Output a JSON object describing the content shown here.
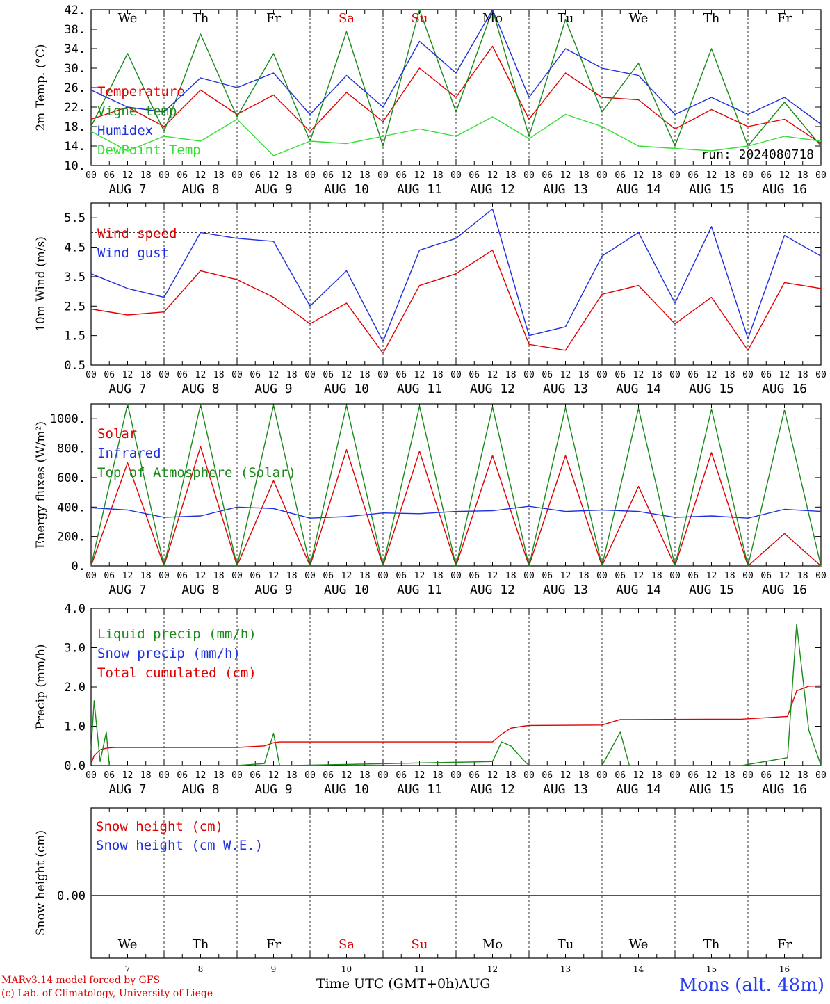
{
  "chart_data": [
    {
      "type": "line",
      "ylabel": "2m Temp. (°C)",
      "ylim": [
        10,
        42
      ],
      "yticks": [
        "42.",
        "38.",
        "34.",
        "30.",
        "26.",
        "22.",
        "18.",
        "14.",
        "10."
      ],
      "ytick_values": [
        42,
        38,
        34,
        30,
        26,
        22,
        18,
        14,
        10
      ],
      "run_label": "run: 2024080718",
      "legend": [
        {
          "name": "Temperature",
          "color": "#e00000"
        },
        {
          "name": "Vigne temp",
          "color": "#1a8a1a"
        },
        {
          "name": "Humidex",
          "color": "#1e2fe0"
        },
        {
          "name": "DewPoint Temp",
          "color": "#33e033"
        }
      ],
      "x_hours": [
        0,
        12,
        24,
        36,
        48,
        60,
        72,
        84,
        96,
        108,
        120,
        132,
        144,
        156,
        168,
        180,
        192,
        204,
        216,
        228,
        240
      ],
      "series": [
        {
          "name": "Temperature",
          "color": "#e00000",
          "values": [
            19.5,
            22,
            18,
            25.5,
            20.5,
            24.5,
            17,
            25,
            19,
            30,
            24,
            34.5,
            19.5,
            29,
            24,
            23.5,
            17.5,
            21.5,
            18,
            19.5,
            14.5
          ]
        },
        {
          "name": "Vigne temp",
          "color": "#1a8a1a",
          "values": [
            18,
            33,
            17,
            37,
            20,
            33,
            15,
            37.5,
            14,
            42,
            21,
            42,
            16,
            40,
            21,
            31,
            14,
            34,
            14,
            23,
            14
          ]
        },
        {
          "name": "Humidex",
          "color": "#1e2fe0",
          "values": [
            25.5,
            22,
            21,
            28,
            26,
            29,
            20.5,
            28.5,
            22,
            35.5,
            29,
            42,
            24,
            34,
            30,
            28.5,
            20.5,
            24,
            20.5,
            24,
            18.5
          ]
        },
        {
          "name": "DewPoint Temp",
          "color": "#33e033",
          "values": [
            17,
            13,
            16,
            15,
            19.5,
            12,
            15,
            14.5,
            16,
            17.5,
            16,
            20,
            15.5,
            20.5,
            18,
            14,
            13.5,
            13,
            14,
            16,
            15
          ]
        }
      ]
    },
    {
      "type": "line",
      "ylabel": "10m Wind (m/s)",
      "ylim": [
        0.5,
        6
      ],
      "yticks": [
        "5.5",
        "4.5",
        "3.5",
        "2.5",
        "1.5",
        "0.5"
      ],
      "ytick_values": [
        5.5,
        4.5,
        3.5,
        2.5,
        1.5,
        0.5
      ],
      "reference_line": 5,
      "legend": [
        {
          "name": "Wind speed",
          "color": "#e00000"
        },
        {
          "name": "Wind gust",
          "color": "#1e2fe0"
        }
      ],
      "x_hours": [
        0,
        12,
        24,
        36,
        48,
        60,
        72,
        84,
        96,
        108,
        120,
        132,
        144,
        156,
        168,
        180,
        192,
        204,
        216,
        228,
        240
      ],
      "series": [
        {
          "name": "Wind speed",
          "color": "#e00000",
          "values": [
            2.4,
            2.2,
            2.3,
            3.7,
            3.4,
            2.8,
            1.9,
            2.6,
            0.9,
            3.2,
            3.6,
            4.4,
            1.2,
            1.0,
            2.9,
            3.2,
            1.9,
            2.8,
            1.0,
            3.3,
            3.1
          ]
        },
        {
          "name": "Wind gust",
          "color": "#1e2fe0",
          "values": [
            3.6,
            3.1,
            2.8,
            5.0,
            4.8,
            4.7,
            2.5,
            3.7,
            1.3,
            4.4,
            4.8,
            5.8,
            1.5,
            1.8,
            4.2,
            5.0,
            2.6,
            5.2,
            1.4,
            4.9,
            4.2
          ]
        }
      ]
    },
    {
      "type": "line",
      "ylabel": "Energy fluxes (W/m²)",
      "ylim": [
        0,
        1100
      ],
      "yticks": [
        "1000.",
        "800.",
        "600.",
        "400.",
        "200.",
        "0."
      ],
      "ytick_values": [
        1000,
        800,
        600,
        400,
        200,
        0
      ],
      "legend": [
        {
          "name": "Solar",
          "color": "#e00000"
        },
        {
          "name": "Infrared",
          "color": "#1e2fe0"
        },
        {
          "name": "Top of Atmosphere (Solar)",
          "color": "#1a8a1a"
        }
      ],
      "x_hours": [
        0,
        12,
        24,
        36,
        48,
        60,
        72,
        84,
        96,
        108,
        120,
        132,
        144,
        156,
        168,
        180,
        192,
        204,
        216,
        228,
        240
      ],
      "series": [
        {
          "name": "Solar",
          "color": "#e00000",
          "values": [
            0,
            700,
            0,
            810,
            0,
            580,
            0,
            790,
            0,
            780,
            0,
            750,
            0,
            750,
            0,
            540,
            0,
            770,
            0,
            220,
            0
          ]
        },
        {
          "name": "Infrared",
          "color": "#1e2fe0",
          "values": [
            395,
            380,
            330,
            340,
            400,
            390,
            325,
            335,
            360,
            355,
            370,
            375,
            405,
            370,
            380,
            370,
            330,
            340,
            325,
            385,
            370
          ]
        },
        {
          "name": "Top of Atmosphere (Solar)",
          "color": "#1a8a1a",
          "values": [
            0,
            1100,
            0,
            1095,
            0,
            1090,
            0,
            1090,
            0,
            1085,
            0,
            1080,
            0,
            1075,
            0,
            1070,
            0,
            1065,
            0,
            1060,
            0
          ]
        }
      ]
    },
    {
      "type": "line",
      "ylabel": "Precip (mm/h)",
      "ylim": [
        0,
        4
      ],
      "yticks": [
        "4.0",
        "3.0",
        "2.0",
        "1.0",
        "0.0"
      ],
      "ytick_values": [
        4,
        3,
        2,
        1,
        0
      ],
      "legend": [
        {
          "name": "Liquid precip (mm/h)",
          "color": "#1a8a1a"
        },
        {
          "name": "Snow precip (mm/h)",
          "color": "#1e2fe0"
        },
        {
          "name": "Total cumulated (cm)",
          "color": "#e00000"
        }
      ],
      "x_hours": [
        0,
        1,
        3,
        5,
        6,
        8,
        12,
        48,
        57,
        60,
        62,
        66,
        132,
        135,
        138,
        142,
        144,
        168,
        174,
        177,
        214,
        229,
        232,
        236,
        240
      ],
      "series": [
        {
          "name": "Total cumulated (cm)",
          "color": "#e00000",
          "values": [
            0.05,
            0.25,
            0.4,
            0.44,
            0.45,
            0.46,
            0.46,
            0.46,
            0.5,
            0.58,
            0.6,
            0.6,
            0.6,
            0.8,
            0.95,
            1.0,
            1.02,
            1.03,
            1.17,
            1.17,
            1.18,
            1.25,
            1.9,
            2.02,
            2.03
          ]
        },
        {
          "name": "Liquid precip (mm/h)",
          "color": "#1a8a1a",
          "values": [
            0.4,
            1.65,
            0.1,
            0.85,
            0,
            0,
            0,
            0,
            0.05,
            0.82,
            0,
            0,
            0.1,
            0.6,
            0.5,
            0.15,
            0,
            0,
            0.85,
            0,
            0,
            0.2,
            3.6,
            0.9,
            0
          ]
        }
      ]
    },
    {
      "type": "line",
      "ylabel": "Snow height (cm)",
      "yticks": [
        "0.00"
      ],
      "legend": [
        {
          "name": "Snow height (cm)",
          "color": "#e00000"
        },
        {
          "name": "Snow height (cm W.E.)",
          "color": "#1e2fe0"
        }
      ],
      "x_hours": [
        0,
        240
      ],
      "series": [
        {
          "name": "Snow height (cm)",
          "color": "#e00000",
          "values": [
            0,
            0
          ]
        },
        {
          "name": "Snow height (cm W.E.)",
          "color": "#1e2fe0",
          "values": [
            0,
            0
          ]
        }
      ]
    }
  ],
  "time_axis": {
    "hour_ticks": [
      "00",
      "06",
      "12",
      "18"
    ],
    "end_tick": "00",
    "dates": [
      "AUG  7",
      "AUG  8",
      "AUG  9",
      "AUG 10",
      "AUG 11",
      "AUG 12",
      "AUG 13",
      "AUG 14",
      "AUG 15",
      "AUG 16"
    ],
    "weekdays": [
      "We",
      "Th",
      "Fr",
      "Sa",
      "Su",
      "Mo",
      "Tu",
      "We",
      "Th",
      "Fr"
    ],
    "day_numbers": [
      "7",
      "8",
      "9",
      "10",
      "11",
      "12",
      "13",
      "14",
      "15",
      "16"
    ],
    "weekend_color": "#e00000",
    "weekday_color": "#000000",
    "xlabel": "Time UTC (GMT+0h)",
    "month": "AUG"
  },
  "footer": {
    "credit_line1": "MARv3.14 model forced by GFS",
    "credit_line2": "(c) Lab. of Climatology, University of Liege",
    "station": "Mons (alt. 48m)"
  }
}
